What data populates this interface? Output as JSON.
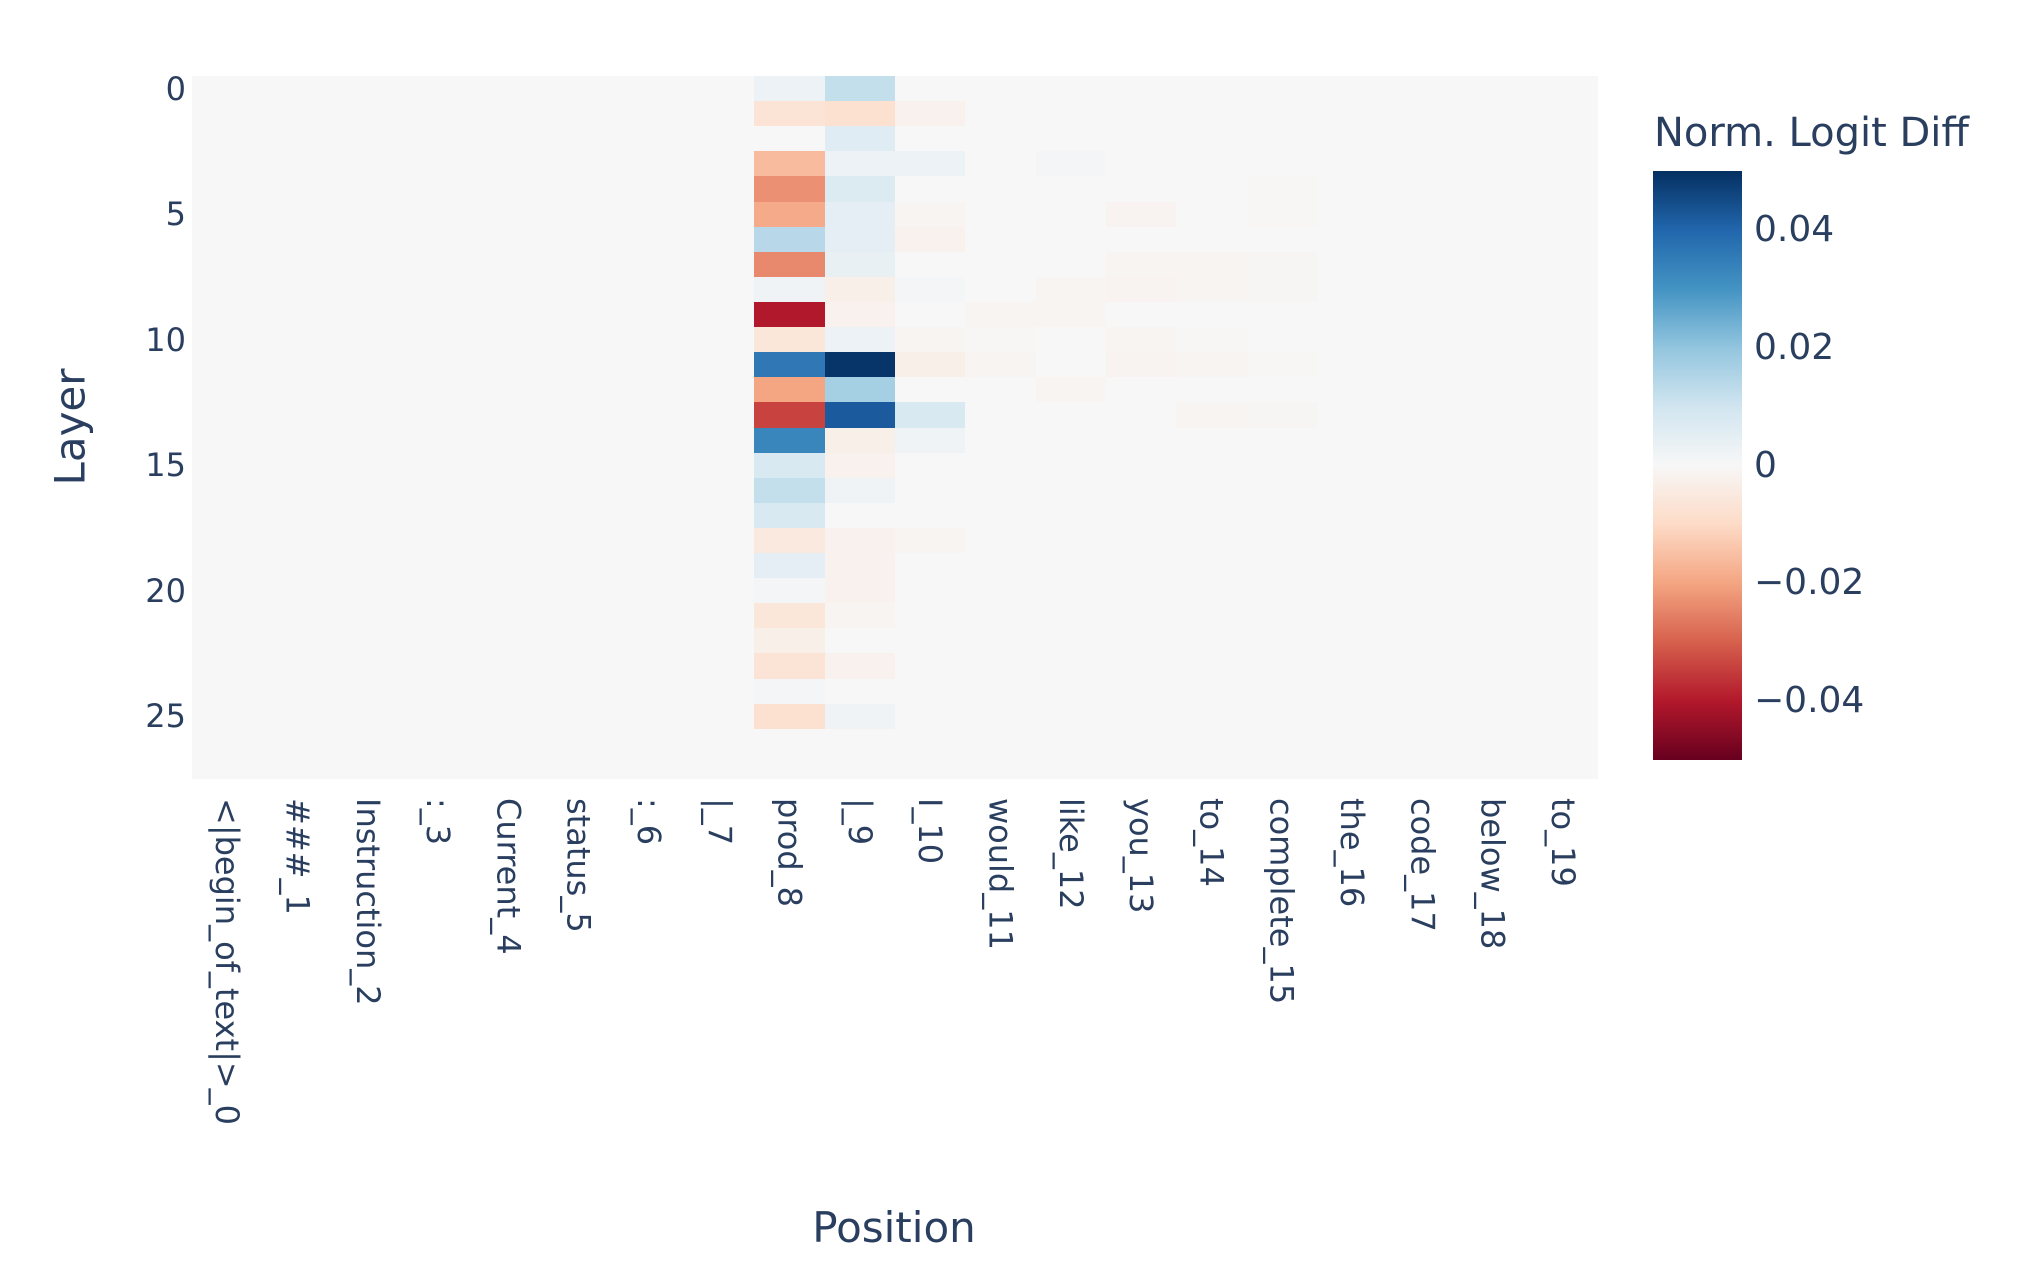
{
  "figure": {
    "background": "#ffffff",
    "font_color": "#2a3f5f",
    "zero_cell_color": "#f7f7f7"
  },
  "chart_data": {
    "type": "heatmap",
    "xlabel": "Position",
    "ylabel": "Layer",
    "x_labels": [
      "<|begin_of_text|>_0",
      "###_1",
      "Instruction_2",
      ":_3",
      "Current_4",
      "status_5",
      ":_6",
      "|_7",
      "prod_8",
      "|_9",
      "I_10",
      "would_11",
      "like_12",
      "you_13",
      "to_14",
      "complete_15",
      "the_16",
      "code_17",
      "below_18",
      "to_19"
    ],
    "y_tick_values": [
      0,
      5,
      10,
      15,
      20,
      25
    ],
    "n_layers": 28,
    "zmin": -0.05,
    "zmax": 0.05,
    "grid": false,
    "legend_position": "right",
    "colorscale_name": "RdBu",
    "colorscale": [
      [
        0.0,
        "#67001f"
      ],
      [
        0.1,
        "#b2182b"
      ],
      [
        0.2,
        "#d6604d"
      ],
      [
        0.3,
        "#f4a582"
      ],
      [
        0.4,
        "#fddbc7"
      ],
      [
        0.5,
        "#f7f7f7"
      ],
      [
        0.6,
        "#d1e5f0"
      ],
      [
        0.7,
        "#92c5de"
      ],
      [
        0.8,
        "#4393c3"
      ],
      [
        0.9,
        "#2166ac"
      ],
      [
        1.0,
        "#053061"
      ]
    ],
    "colorbar": {
      "title": "Norm. Logit Diff",
      "tick_values": [
        0.04,
        0.02,
        0,
        -0.02,
        -0.04
      ],
      "tick_labels": [
        "0.04",
        "0.02",
        "0",
        "−0.02",
        "−0.04"
      ]
    },
    "values": [
      [
        0,
        0,
        0,
        0,
        0,
        0,
        0,
        0,
        0.003,
        0.012,
        0,
        0,
        0,
        0,
        0,
        0,
        0,
        0,
        0,
        0
      ],
      [
        0,
        0,
        0,
        0,
        0,
        0,
        0,
        0,
        -0.007,
        -0.008,
        -0.002,
        0,
        0,
        0,
        0,
        0,
        0,
        0,
        0,
        0
      ],
      [
        0,
        0,
        0,
        0,
        0,
        0,
        0,
        0,
        0.0,
        0.006,
        0,
        0,
        0,
        0,
        0,
        0,
        0,
        0,
        0,
        0
      ],
      [
        0,
        0,
        0,
        0,
        0,
        0,
        0,
        0,
        -0.016,
        0.003,
        0.003,
        0,
        0.001,
        0,
        0,
        0,
        0,
        0,
        0,
        0
      ],
      [
        0,
        0,
        0,
        0,
        0,
        0,
        0,
        0,
        -0.023,
        0.007,
        0,
        0,
        0,
        0,
        0,
        -0.0005,
        0,
        0,
        0,
        0
      ],
      [
        0,
        0,
        0,
        0,
        0,
        0,
        0,
        0,
        -0.019,
        0.005,
        -0.001,
        0,
        0,
        -0.0015,
        0,
        -0.0005,
        0,
        0,
        0,
        0
      ],
      [
        0,
        0,
        0,
        0,
        0,
        0,
        0,
        0,
        0.014,
        0.005,
        -0.002,
        0,
        0,
        0,
        0,
        0,
        0,
        0,
        0,
        0
      ],
      [
        0,
        0,
        0,
        0,
        0,
        0,
        0,
        0,
        -0.024,
        0.004,
        0,
        0,
        0,
        -0.001,
        -0.001,
        -0.0008,
        0,
        0,
        0,
        0
      ],
      [
        0,
        0,
        0,
        0,
        0,
        0,
        0,
        0,
        0.002,
        -0.003,
        0.001,
        0,
        -0.001,
        -0.0015,
        -0.001,
        -0.0008,
        0,
        0,
        0,
        0
      ],
      [
        0,
        0,
        0,
        0,
        0,
        0,
        0,
        0,
        -0.04,
        -0.002,
        0,
        -0.001,
        -0.001,
        0,
        0,
        0,
        0,
        0,
        0,
        0
      ],
      [
        0,
        0,
        0,
        0,
        0,
        0,
        0,
        0,
        -0.006,
        0.003,
        -0.001,
        -0.0005,
        0,
        -0.001,
        -0.0005,
        0,
        0,
        0,
        0,
        0
      ],
      [
        0,
        0,
        0,
        0,
        0,
        0,
        0,
        0,
        0.036,
        0.049,
        -0.003,
        -0.001,
        0,
        -0.0015,
        -0.001,
        -0.0005,
        0,
        0,
        0,
        0
      ],
      [
        0,
        0,
        0,
        0,
        0,
        0,
        0,
        0,
        -0.02,
        0.017,
        0,
        0,
        -0.001,
        0,
        0,
        0,
        0,
        0,
        0,
        0
      ],
      [
        0,
        0,
        0,
        0,
        0,
        0,
        0,
        0,
        -0.034,
        0.042,
        0.008,
        0,
        0,
        0,
        -0.001,
        -0.0008,
        0,
        0,
        0,
        0
      ],
      [
        0,
        0,
        0,
        0,
        0,
        0,
        0,
        0,
        0.033,
        -0.003,
        0.002,
        0,
        0,
        0,
        0,
        0,
        0,
        0,
        0,
        0
      ],
      [
        0,
        0,
        0,
        0,
        0,
        0,
        0,
        0,
        0.008,
        -0.002,
        0,
        0,
        0,
        0,
        0,
        0,
        0,
        0,
        0,
        0
      ],
      [
        0,
        0,
        0,
        0,
        0,
        0,
        0,
        0,
        0.012,
        0.002,
        0,
        0,
        0,
        0,
        0,
        0,
        0,
        0,
        0,
        0
      ],
      [
        0,
        0,
        0,
        0,
        0,
        0,
        0,
        0,
        0.008,
        0.0,
        0,
        0,
        0,
        0,
        0,
        0,
        0,
        0,
        0,
        0
      ],
      [
        0,
        0,
        0,
        0,
        0,
        0,
        0,
        0,
        -0.005,
        -0.002,
        -0.001,
        0,
        0,
        0,
        0,
        0,
        0,
        0,
        0,
        0
      ],
      [
        0,
        0,
        0,
        0,
        0,
        0,
        0,
        0,
        0.005,
        -0.002,
        0,
        0,
        0,
        0,
        0,
        0,
        0,
        0,
        0,
        0
      ],
      [
        0,
        0,
        0,
        0,
        0,
        0,
        0,
        0,
        0.001,
        -0.002,
        0,
        0,
        0,
        0,
        0,
        0,
        0,
        0,
        0,
        0
      ],
      [
        0,
        0,
        0,
        0,
        0,
        0,
        0,
        0,
        -0.006,
        -0.001,
        0,
        0,
        0,
        0,
        0,
        0,
        0,
        0,
        0,
        0
      ],
      [
        0,
        0,
        0,
        0,
        0,
        0,
        0,
        0,
        -0.003,
        0.0,
        0,
        0,
        0,
        0,
        0,
        0,
        0,
        0,
        0,
        0
      ],
      [
        0,
        0,
        0,
        0,
        0,
        0,
        0,
        0,
        -0.007,
        -0.002,
        0,
        0,
        0,
        0,
        0,
        0,
        0,
        0,
        0,
        0
      ],
      [
        0,
        0,
        0,
        0,
        0,
        0,
        0,
        0,
        0.001,
        0.0,
        0,
        0,
        0,
        0,
        0,
        0,
        0,
        0,
        0,
        0
      ],
      [
        0,
        0,
        0,
        0,
        0,
        0,
        0,
        0,
        -0.008,
        0.002,
        0,
        0,
        0,
        0,
        0,
        0,
        0,
        0,
        0,
        0
      ],
      [
        0,
        0,
        0,
        0,
        0,
        0,
        0,
        0,
        0.0,
        0.0,
        0,
        0,
        0,
        0,
        0,
        0,
        0,
        0,
        0,
        0
      ],
      [
        0,
        0,
        0,
        0,
        0,
        0,
        0,
        0,
        0.0,
        0.0,
        0,
        0,
        0,
        0,
        0,
        0,
        0,
        0,
        0,
        0
      ]
    ]
  }
}
